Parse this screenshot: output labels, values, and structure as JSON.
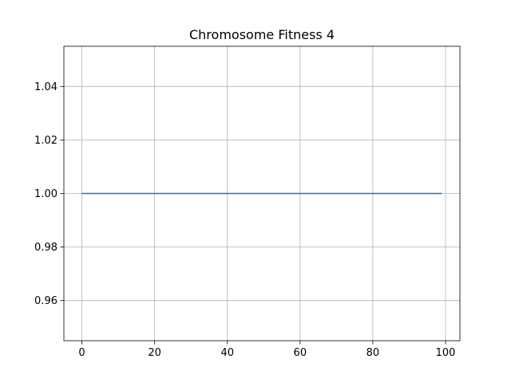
{
  "chart_data": {
    "type": "line",
    "title": "Chromosome Fitness 4",
    "xlabel": "",
    "ylabel": "",
    "x_range": [
      0,
      99
    ],
    "y_value": 1.0,
    "xlim": [
      -4.95,
      103.95
    ],
    "ylim": [
      0.945,
      1.055
    ],
    "x_ticks": [
      0,
      20,
      40,
      60,
      80,
      100
    ],
    "x_tick_labels": [
      "0",
      "20",
      "40",
      "60",
      "80",
      "100"
    ],
    "y_ticks": [
      0.96,
      0.98,
      1.0,
      1.02,
      1.04
    ],
    "y_tick_labels": [
      "0.96",
      "0.98",
      "1.00",
      "1.02",
      "1.04"
    ],
    "grid": true,
    "legend": "none",
    "series": [
      {
        "color": "#1f77b4",
        "x_start": 0,
        "x_end": 99,
        "y": 1.0
      }
    ]
  }
}
